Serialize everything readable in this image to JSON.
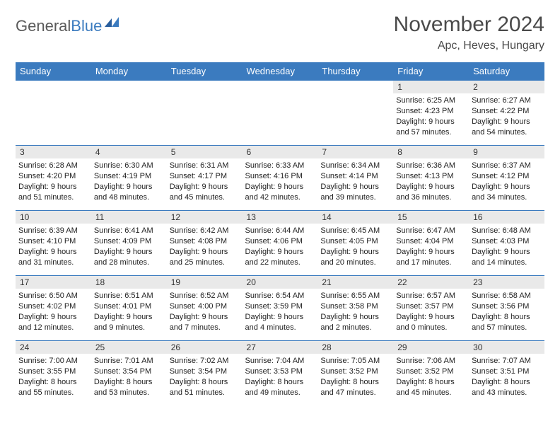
{
  "brand": {
    "word1": "General",
    "word2": "Blue"
  },
  "title": "November 2024",
  "location": "Apc, Heves, Hungary",
  "colors": {
    "header_bg": "#3b7bbf",
    "header_text": "#ffffff",
    "daynum_bg": "#e9e9e9",
    "border": "#3b7bbf",
    "text": "#222222",
    "title_text": "#4a4a4a"
  },
  "day_headers": [
    "Sunday",
    "Monday",
    "Tuesday",
    "Wednesday",
    "Thursday",
    "Friday",
    "Saturday"
  ],
  "weeks": [
    [
      {
        "n": "",
        "sunrise": "",
        "sunset": "",
        "daylight": ""
      },
      {
        "n": "",
        "sunrise": "",
        "sunset": "",
        "daylight": ""
      },
      {
        "n": "",
        "sunrise": "",
        "sunset": "",
        "daylight": ""
      },
      {
        "n": "",
        "sunrise": "",
        "sunset": "",
        "daylight": ""
      },
      {
        "n": "",
        "sunrise": "",
        "sunset": "",
        "daylight": ""
      },
      {
        "n": "1",
        "sunrise": "Sunrise: 6:25 AM",
        "sunset": "Sunset: 4:23 PM",
        "daylight": "Daylight: 9 hours and 57 minutes."
      },
      {
        "n": "2",
        "sunrise": "Sunrise: 6:27 AM",
        "sunset": "Sunset: 4:22 PM",
        "daylight": "Daylight: 9 hours and 54 minutes."
      }
    ],
    [
      {
        "n": "3",
        "sunrise": "Sunrise: 6:28 AM",
        "sunset": "Sunset: 4:20 PM",
        "daylight": "Daylight: 9 hours and 51 minutes."
      },
      {
        "n": "4",
        "sunrise": "Sunrise: 6:30 AM",
        "sunset": "Sunset: 4:19 PM",
        "daylight": "Daylight: 9 hours and 48 minutes."
      },
      {
        "n": "5",
        "sunrise": "Sunrise: 6:31 AM",
        "sunset": "Sunset: 4:17 PM",
        "daylight": "Daylight: 9 hours and 45 minutes."
      },
      {
        "n": "6",
        "sunrise": "Sunrise: 6:33 AM",
        "sunset": "Sunset: 4:16 PM",
        "daylight": "Daylight: 9 hours and 42 minutes."
      },
      {
        "n": "7",
        "sunrise": "Sunrise: 6:34 AM",
        "sunset": "Sunset: 4:14 PM",
        "daylight": "Daylight: 9 hours and 39 minutes."
      },
      {
        "n": "8",
        "sunrise": "Sunrise: 6:36 AM",
        "sunset": "Sunset: 4:13 PM",
        "daylight": "Daylight: 9 hours and 36 minutes."
      },
      {
        "n": "9",
        "sunrise": "Sunrise: 6:37 AM",
        "sunset": "Sunset: 4:12 PM",
        "daylight": "Daylight: 9 hours and 34 minutes."
      }
    ],
    [
      {
        "n": "10",
        "sunrise": "Sunrise: 6:39 AM",
        "sunset": "Sunset: 4:10 PM",
        "daylight": "Daylight: 9 hours and 31 minutes."
      },
      {
        "n": "11",
        "sunrise": "Sunrise: 6:41 AM",
        "sunset": "Sunset: 4:09 PM",
        "daylight": "Daylight: 9 hours and 28 minutes."
      },
      {
        "n": "12",
        "sunrise": "Sunrise: 6:42 AM",
        "sunset": "Sunset: 4:08 PM",
        "daylight": "Daylight: 9 hours and 25 minutes."
      },
      {
        "n": "13",
        "sunrise": "Sunrise: 6:44 AM",
        "sunset": "Sunset: 4:06 PM",
        "daylight": "Daylight: 9 hours and 22 minutes."
      },
      {
        "n": "14",
        "sunrise": "Sunrise: 6:45 AM",
        "sunset": "Sunset: 4:05 PM",
        "daylight": "Daylight: 9 hours and 20 minutes."
      },
      {
        "n": "15",
        "sunrise": "Sunrise: 6:47 AM",
        "sunset": "Sunset: 4:04 PM",
        "daylight": "Daylight: 9 hours and 17 minutes."
      },
      {
        "n": "16",
        "sunrise": "Sunrise: 6:48 AM",
        "sunset": "Sunset: 4:03 PM",
        "daylight": "Daylight: 9 hours and 14 minutes."
      }
    ],
    [
      {
        "n": "17",
        "sunrise": "Sunrise: 6:50 AM",
        "sunset": "Sunset: 4:02 PM",
        "daylight": "Daylight: 9 hours and 12 minutes."
      },
      {
        "n": "18",
        "sunrise": "Sunrise: 6:51 AM",
        "sunset": "Sunset: 4:01 PM",
        "daylight": "Daylight: 9 hours and 9 minutes."
      },
      {
        "n": "19",
        "sunrise": "Sunrise: 6:52 AM",
        "sunset": "Sunset: 4:00 PM",
        "daylight": "Daylight: 9 hours and 7 minutes."
      },
      {
        "n": "20",
        "sunrise": "Sunrise: 6:54 AM",
        "sunset": "Sunset: 3:59 PM",
        "daylight": "Daylight: 9 hours and 4 minutes."
      },
      {
        "n": "21",
        "sunrise": "Sunrise: 6:55 AM",
        "sunset": "Sunset: 3:58 PM",
        "daylight": "Daylight: 9 hours and 2 minutes."
      },
      {
        "n": "22",
        "sunrise": "Sunrise: 6:57 AM",
        "sunset": "Sunset: 3:57 PM",
        "daylight": "Daylight: 9 hours and 0 minutes."
      },
      {
        "n": "23",
        "sunrise": "Sunrise: 6:58 AM",
        "sunset": "Sunset: 3:56 PM",
        "daylight": "Daylight: 8 hours and 57 minutes."
      }
    ],
    [
      {
        "n": "24",
        "sunrise": "Sunrise: 7:00 AM",
        "sunset": "Sunset: 3:55 PM",
        "daylight": "Daylight: 8 hours and 55 minutes."
      },
      {
        "n": "25",
        "sunrise": "Sunrise: 7:01 AM",
        "sunset": "Sunset: 3:54 PM",
        "daylight": "Daylight: 8 hours and 53 minutes."
      },
      {
        "n": "26",
        "sunrise": "Sunrise: 7:02 AM",
        "sunset": "Sunset: 3:54 PM",
        "daylight": "Daylight: 8 hours and 51 minutes."
      },
      {
        "n": "27",
        "sunrise": "Sunrise: 7:04 AM",
        "sunset": "Sunset: 3:53 PM",
        "daylight": "Daylight: 8 hours and 49 minutes."
      },
      {
        "n": "28",
        "sunrise": "Sunrise: 7:05 AM",
        "sunset": "Sunset: 3:52 PM",
        "daylight": "Daylight: 8 hours and 47 minutes."
      },
      {
        "n": "29",
        "sunrise": "Sunrise: 7:06 AM",
        "sunset": "Sunset: 3:52 PM",
        "daylight": "Daylight: 8 hours and 45 minutes."
      },
      {
        "n": "30",
        "sunrise": "Sunrise: 7:07 AM",
        "sunset": "Sunset: 3:51 PM",
        "daylight": "Daylight: 8 hours and 43 minutes."
      }
    ]
  ]
}
